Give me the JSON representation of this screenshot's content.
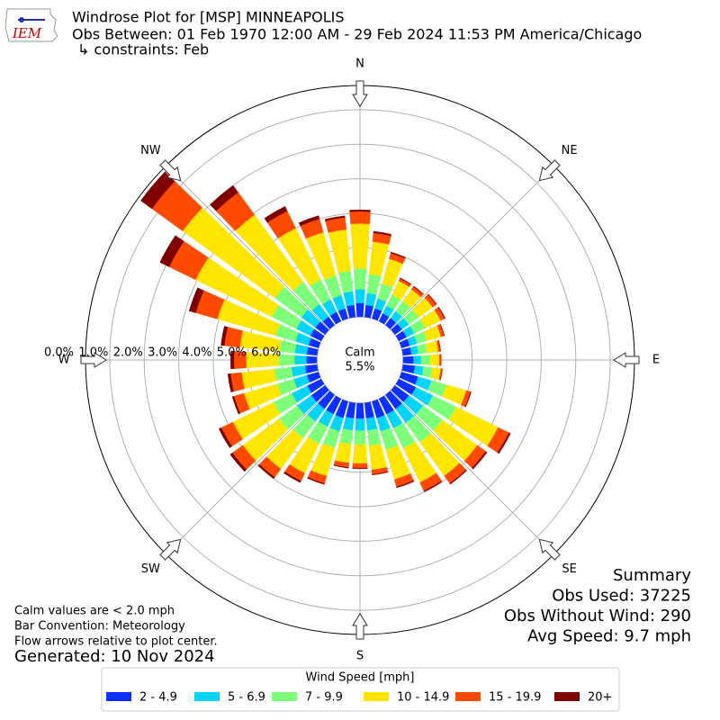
{
  "chart_data": {
    "type": "windrose",
    "logo": "IEM",
    "title": "Windrose Plot for [MSP] MINNEAPOLIS",
    "subtitle": "Obs Between: 01 Feb 1970 12:00 AM - 29 Feb 2024 11:53 PM America/Chicago",
    "constraints": "↳ constraints: Feb",
    "calm": {
      "label": "Calm",
      "value": 5.5,
      "value_label": "5.5%"
    },
    "compass_labels": [
      "N",
      "NE",
      "E",
      "SE",
      "S",
      "SW",
      "W",
      "NW"
    ],
    "rlim": [
      0,
      6.7
    ],
    "rticks": [
      {
        "value": 0,
        "label": "0.0%"
      },
      {
        "value": 1,
        "label": "1.0%"
      },
      {
        "value": 2,
        "label": "2.0%"
      },
      {
        "value": 3,
        "label": "3.0%"
      },
      {
        "value": 4,
        "label": "4.0%"
      },
      {
        "value": 5,
        "label": "5.0%"
      },
      {
        "value": 6,
        "label": "6.0%"
      }
    ],
    "grid": true,
    "legend_title": "Wind Speed [mph]",
    "legend_position": "bottom",
    "series": [
      {
        "name": "2 - 4.9",
        "color": "#0d2fff",
        "values": [
          0.4,
          0.35,
          0.3,
          0.25,
          0.25,
          0.25,
          0.25,
          0.25,
          0.25,
          0.3,
          0.35,
          0.5,
          0.55,
          0.5,
          0.5,
          0.5,
          0.5,
          0.45,
          0.45,
          0.45,
          0.5,
          0.5,
          0.5,
          0.5,
          0.45,
          0.35,
          0.35,
          0.3,
          0.3,
          0.3,
          0.35,
          0.35,
          0.3,
          0.3,
          0.3,
          0.35
        ]
      },
      {
        "name": "5 - 6.9",
        "color": "#00d4ff",
        "values": [
          0.4,
          0.35,
          0.3,
          0.25,
          0.25,
          0.25,
          0.25,
          0.22,
          0.2,
          0.22,
          0.25,
          0.4,
          0.55,
          0.5,
          0.5,
          0.45,
          0.4,
          0.35,
          0.35,
          0.35,
          0.4,
          0.4,
          0.45,
          0.5,
          0.5,
          0.4,
          0.4,
          0.35,
          0.35,
          0.4,
          0.45,
          0.5,
          0.45,
          0.4,
          0.4,
          0.4
        ]
      },
      {
        "name": "7 - 9.9",
        "color": "#7dff7a",
        "values": [
          0.6,
          0.55,
          0.45,
          0.35,
          0.35,
          0.35,
          0.35,
          0.3,
          0.25,
          0.25,
          0.25,
          0.45,
          0.75,
          0.7,
          0.7,
          0.65,
          0.55,
          0.45,
          0.4,
          0.4,
          0.5,
          0.55,
          0.6,
          0.65,
          0.6,
          0.5,
          0.5,
          0.45,
          0.45,
          0.6,
          0.8,
          0.95,
          0.8,
          0.65,
          0.6,
          0.6
        ]
      },
      {
        "name": "10 - 14.9",
        "color": "#ffe600",
        "values": [
          1.3,
          0.95,
          0.75,
          0.45,
          0.43,
          0.5,
          0.5,
          0.42,
          0.33,
          0.28,
          0.25,
          0.6,
          1.35,
          1.25,
          1.2,
          1.1,
          0.9,
          0.7,
          0.55,
          0.55,
          0.85,
          0.95,
          1.1,
          1.3,
          1.3,
          1.0,
          0.95,
          0.95,
          1.15,
          1.75,
          2.45,
          3.3,
          2.4,
          1.65,
          1.3,
          1.2
        ]
      },
      {
        "name": "15 - 19.9",
        "color": "#ff4a00",
        "values": [
          0.35,
          0.25,
          0.17,
          0.08,
          0.1,
          0.13,
          0.13,
          0.1,
          0.06,
          0.05,
          0.05,
          0.13,
          0.35,
          0.3,
          0.27,
          0.27,
          0.22,
          0.13,
          0.13,
          0.13,
          0.22,
          0.25,
          0.3,
          0.37,
          0.37,
          0.3,
          0.32,
          0.35,
          0.45,
          0.65,
          0.85,
          1.1,
          0.8,
          0.55,
          0.4,
          0.35
        ]
      },
      {
        "name": "20+",
        "color": "#800000",
        "values": [
          0.05,
          0.05,
          0.03,
          0.02,
          0.02,
          0.02,
          0.02,
          0.01,
          0.01,
          0,
          0,
          0.02,
          0.05,
          0.05,
          0.03,
          0.03,
          0.03,
          0.02,
          0.02,
          0.02,
          0.03,
          0.05,
          0.05,
          0.08,
          0.08,
          0.05,
          0.08,
          0.1,
          0.1,
          0.2,
          0.3,
          0.4,
          0.25,
          0.15,
          0.1,
          0.05
        ]
      }
    ],
    "summary": [
      "Summary",
      "Obs Used: 37225",
      "Obs Without Wind: 290",
      "Avg Speed: 9.7 mph"
    ],
    "notes": [
      "Calm values are < 2.0 mph",
      "Bar Convention: Meteorology",
      "Flow arrows relative to plot center."
    ],
    "generated": "Generated: 10 Nov 2024"
  }
}
